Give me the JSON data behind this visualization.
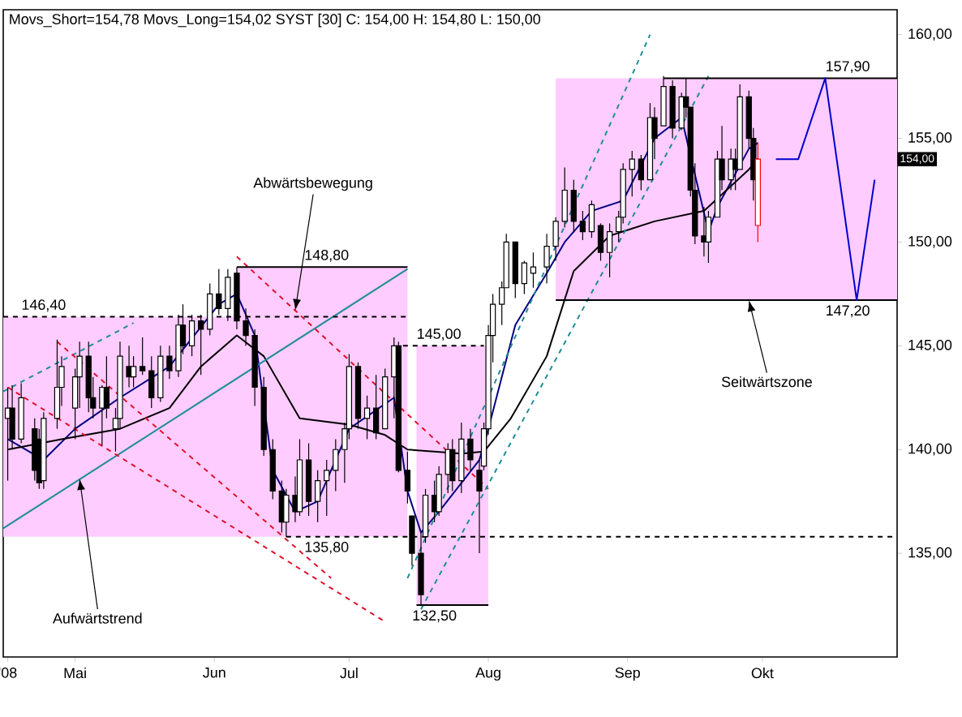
{
  "chart_data": {
    "type": "candlestick",
    "title": "Movs_Short=154,78 Movs_Long=154,02 SYST [30] C: 154,00 H: 154,80 L: 150,00",
    "xlim": [
      "2008-04-15",
      "2008-10-31"
    ],
    "ylim": [
      130,
      161.2
    ],
    "xticks": [
      {
        "value": "2008-04-16",
        "label": "'08"
      },
      {
        "value": "2008-05-01",
        "label": "Mai"
      },
      {
        "value": "2008-06-01",
        "label": "Jun"
      },
      {
        "value": "2008-07-01",
        "label": "Jul"
      },
      {
        "value": "2008-08-01",
        "label": "Aug"
      },
      {
        "value": "2008-09-01",
        "label": "Sep"
      },
      {
        "value": "2008-10-01",
        "label": "Okt"
      }
    ],
    "yticks": [
      {
        "value": 135,
        "label": "135,00"
      },
      {
        "value": 140,
        "label": "140,00"
      },
      {
        "value": 145,
        "label": "145,00"
      },
      {
        "value": 150,
        "label": "150,00"
      },
      {
        "value": 155,
        "label": "155,00"
      },
      {
        "value": 160,
        "label": "160,00"
      }
    ],
    "x": [
      "2008-04-16",
      "2008-04-17",
      "2008-04-19",
      "2008-04-22",
      "2008-04-23",
      "2008-04-24",
      "2008-04-27",
      "2008-04-28",
      "2008-05-01",
      "2008-05-02",
      "2008-05-04",
      "2008-05-05",
      "2008-05-07",
      "2008-05-08",
      "2008-05-10",
      "2008-05-11",
      "2008-05-13",
      "2008-05-14",
      "2008-05-16",
      "2008-05-18",
      "2008-05-20",
      "2008-05-22",
      "2008-05-24",
      "2008-05-25",
      "2008-05-27",
      "2008-05-29",
      "2008-05-31",
      "2008-06-02",
      "2008-06-04",
      "2008-06-06",
      "2008-06-08",
      "2008-06-10",
      "2008-06-12",
      "2008-06-14",
      "2008-06-16",
      "2008-06-17",
      "2008-06-19",
      "2008-06-20",
      "2008-06-22",
      "2008-06-24",
      "2008-06-26",
      "2008-06-28",
      "2008-06-30",
      "2008-07-01",
      "2008-07-03",
      "2008-07-05",
      "2008-07-07",
      "2008-07-09",
      "2008-07-11",
      "2008-07-12",
      "2008-07-14",
      "2008-07-15",
      "2008-07-17",
      "2008-07-18",
      "2008-07-20",
      "2008-07-21",
      "2008-07-23",
      "2008-07-24",
      "2008-07-26",
      "2008-07-28",
      "2008-07-30",
      "2008-07-31",
      "2008-08-01",
      "2008-08-02",
      "2008-08-04",
      "2008-08-05",
      "2008-08-07",
      "2008-08-09",
      "2008-08-11",
      "2008-08-14",
      "2008-08-16",
      "2008-08-18",
      "2008-08-20",
      "2008-08-22",
      "2008-08-24",
      "2008-08-26",
      "2008-08-28",
      "2008-08-30",
      "2008-08-31",
      "2008-09-02",
      "2008-09-04",
      "2008-09-06",
      "2008-09-07",
      "2008-09-09",
      "2008-09-11",
      "2008-09-13",
      "2008-09-14",
      "2008-09-15",
      "2008-09-16",
      "2008-09-18",
      "2008-09-19",
      "2008-09-21",
      "2008-09-22",
      "2008-09-24",
      "2008-09-25",
      "2008-09-26",
      "2008-09-28",
      "2008-09-29",
      "2008-09-30"
    ],
    "ohlc": [
      [
        141.5,
        143.0,
        138.5,
        142.0
      ],
      [
        142.0,
        143.1,
        140.0,
        140.5
      ],
      [
        140.5,
        143.2,
        140.3,
        142.5
      ],
      [
        141.0,
        141.5,
        138.5,
        139.0
      ],
      [
        140.5,
        141.0,
        138.1,
        138.4
      ],
      [
        138.5,
        141.8,
        138.1,
        141.5
      ],
      [
        141.5,
        145.3,
        141.0,
        143.0
      ],
      [
        143.0,
        144.5,
        142.1,
        144.0
      ],
      [
        142.0,
        143.9,
        140.5,
        143.5
      ],
      [
        143.5,
        145.2,
        142.0,
        144.5
      ],
      [
        144.5,
        145.2,
        141.8,
        142.5
      ],
      [
        142.5,
        143.5,
        141.5,
        142.0
      ],
      [
        142.0,
        143.1,
        140.2,
        143.0
      ],
      [
        143.0,
        144.5,
        141.5,
        142.0
      ],
      [
        141.0,
        142.0,
        139.9,
        141.5
      ],
      [
        141.5,
        145.2,
        141.0,
        144.5
      ],
      [
        144.0,
        145.0,
        143.0,
        143.5
      ],
      [
        143.5,
        144.5,
        143.0,
        144.0
      ],
      [
        144.0,
        145.4,
        143.6,
        143.8
      ],
      [
        143.8,
        144.5,
        142.0,
        142.5
      ],
      [
        142.5,
        145.0,
        142.3,
        144.5
      ],
      [
        144.5,
        145.0,
        143.4,
        143.8
      ],
      [
        143.8,
        146.5,
        143.5,
        146.0
      ],
      [
        146.0,
        147.0,
        144.6,
        145.0
      ],
      [
        145.0,
        146.5,
        144.5,
        146.2
      ],
      [
        146.2,
        146.5,
        143.6,
        145.8
      ],
      [
        145.8,
        148.0,
        145.5,
        147.5
      ],
      [
        147.5,
        148.7,
        146.5,
        146.8
      ],
      [
        146.8,
        148.7,
        146.2,
        148.3
      ],
      [
        148.5,
        148.8,
        145.8,
        146.2
      ],
      [
        146.2,
        146.8,
        145.0,
        145.5
      ],
      [
        145.5,
        145.8,
        142.1,
        143.0
      ],
      [
        143.0,
        143.5,
        139.7,
        140.0
      ],
      [
        140.0,
        140.5,
        137.6,
        138.0
      ],
      [
        138.0,
        138.5,
        136.0,
        136.5
      ],
      [
        136.5,
        138.1,
        135.8,
        137.8
      ],
      [
        137.8,
        138.7,
        136.5,
        137.0
      ],
      [
        137.0,
        140.5,
        136.8,
        139.5
      ],
      [
        139.5,
        140.3,
        136.8,
        137.5
      ],
      [
        137.5,
        139.0,
        136.5,
        138.5
      ],
      [
        138.5,
        139.5,
        136.8,
        139.0
      ],
      [
        139.0,
        140.5,
        138.0,
        140.0
      ],
      [
        140.0,
        141.3,
        138.4,
        141.0
      ],
      [
        141.0,
        144.6,
        140.5,
        144.0
      ],
      [
        144.0,
        144.2,
        141.0,
        141.5
      ],
      [
        141.5,
        142.6,
        140.5,
        142.0
      ],
      [
        142.0,
        143.6,
        140.5,
        140.8
      ],
      [
        141.0,
        143.9,
        141.0,
        143.5
      ],
      [
        143.5,
        145.4,
        141.5,
        145.0
      ],
      [
        145.0,
        145.2,
        138.9,
        139.0
      ],
      [
        139.0,
        139.9,
        137.4,
        138.0
      ],
      [
        136.8,
        136.8,
        134.4,
        135.0
      ],
      [
        135.0,
        136.0,
        132.5,
        133.0
      ],
      [
        135.8,
        138.1,
        135.5,
        137.8
      ],
      [
        137.8,
        138.5,
        136.5,
        137.0
      ],
      [
        137.0,
        139.2,
        136.8,
        138.8
      ],
      [
        138.8,
        140.3,
        137.9,
        140.0
      ],
      [
        140.0,
        140.5,
        138.0,
        138.5
      ],
      [
        138.5,
        141.3,
        137.9,
        140.5
      ],
      [
        140.5,
        141.0,
        139.0,
        139.5
      ],
      [
        139.0,
        139.5,
        135.0,
        138.0
      ],
      [
        139.2,
        141.3,
        139.0,
        141.0
      ],
      [
        141.0,
        146.0,
        140.7,
        145.5
      ],
      [
        145.5,
        147.5,
        144.2,
        147.0
      ],
      [
        147.0,
        148.1,
        146.0,
        147.8
      ],
      [
        147.8,
        150.4,
        147.8,
        150.0
      ],
      [
        150.0,
        150.0,
        147.3,
        148.0
      ],
      [
        148.0,
        149.1,
        147.5,
        149.0
      ],
      [
        148.5,
        149.5,
        147.8,
        148.8
      ],
      [
        148.8,
        150.4,
        148.0,
        149.8
      ],
      [
        149.8,
        151.2,
        149.1,
        151.0
      ],
      [
        151.0,
        153.6,
        150.7,
        152.5
      ],
      [
        152.5,
        153.0,
        150.5,
        151.0
      ],
      [
        151.0,
        151.5,
        150.1,
        150.5
      ],
      [
        150.5,
        152.0,
        150.2,
        151.8
      ],
      [
        150.8,
        150.9,
        149.1,
        149.5
      ],
      [
        149.5,
        150.9,
        148.3,
        150.5
      ],
      [
        150.5,
        151.5,
        150.0,
        151.2
      ],
      [
        151.2,
        153.8,
        150.9,
        153.5
      ],
      [
        153.5,
        154.4,
        152.2,
        154.0
      ],
      [
        154.0,
        154.2,
        152.5,
        153.0
      ],
      [
        153.0,
        156.7,
        153.0,
        156.0
      ],
      [
        156.0,
        156.5,
        154.0,
        155.0
      ],
      [
        155.6,
        158.0,
        155.6,
        157.5
      ],
      [
        157.5,
        157.8,
        155.0,
        155.5
      ],
      [
        155.5,
        157.2,
        155.4,
        157.0
      ],
      [
        157.0,
        157.9,
        156.0,
        156.5
      ],
      [
        156.5,
        156.5,
        152.2,
        152.5
      ],
      [
        152.5,
        153.8,
        149.9,
        150.3
      ],
      [
        150.3,
        151.7,
        149.3,
        150.0
      ],
      [
        150.0,
        151.5,
        149.0,
        151.2
      ],
      [
        151.2,
        154.4,
        151.2,
        154.0
      ],
      [
        154.0,
        155.6,
        152.5,
        153.0
      ],
      [
        153.0,
        154.5,
        152.5,
        154.0
      ],
      [
        154.0,
        154.5,
        152.5,
        153.5
      ],
      [
        153.5,
        157.6,
        153.5,
        157.0
      ],
      [
        157.0,
        157.3,
        154.5,
        155.0
      ],
      [
        155.0,
        155.5,
        152.0,
        153.0
      ],
      [
        150.8,
        154.8,
        150.0,
        154.0
      ]
    ],
    "colors": [
      "#000000",
      "#000000",
      "#000000",
      "#000000",
      "#000000",
      "#000000",
      "#000000",
      "#000000",
      "#000000",
      "#000000",
      "#000000",
      "#000000",
      "#000000",
      "#000000",
      "#000000",
      "#000000",
      "#000000",
      "#000000",
      "#000000",
      "#000000",
      "#000000",
      "#000000",
      "#000000",
      "#000000",
      "#000000",
      "#000000",
      "#000000",
      "#000000",
      "#000000",
      "#000000",
      "#000000",
      "#000000",
      "#000000",
      "#000000",
      "#000000",
      "#000000",
      "#000000",
      "#000000",
      "#000000",
      "#000000",
      "#000000",
      "#000000",
      "#000000",
      "#000000",
      "#000000",
      "#000000",
      "#000000",
      "#000000",
      "#000000",
      "#000000",
      "#000000",
      "#000000",
      "#000000",
      "#000000",
      "#000000",
      "#000000",
      "#000000",
      "#000000",
      "#000000",
      "#000000",
      "#000000",
      "#000000",
      "#000000",
      "#000000",
      "#000000",
      "#000000",
      "#000000",
      "#000000",
      "#000000",
      "#000000",
      "#000000",
      "#000000",
      "#000000",
      "#000000",
      "#000000",
      "#000000",
      "#000000",
      "#000000",
      "#000000",
      "#000000",
      "#000000",
      "#000000",
      "#000000",
      "#000000",
      "#000000",
      "#000000",
      "#000000",
      "#000000",
      "#000000",
      "#000000",
      "#000000",
      "#000000",
      "#000000",
      "#000000",
      "#000000",
      "#000000",
      "#000000",
      "#000000",
      "#ff0000"
    ],
    "value_labels": [
      null,
      null,
      null,
      null,
      null,
      null,
      null,
      null,
      null,
      null,
      null,
      null,
      null,
      null,
      null,
      null,
      null,
      null,
      null,
      null,
      null,
      null,
      null,
      null,
      null,
      null,
      null,
      null,
      null,
      null,
      null,
      null,
      null,
      null,
      null,
      null,
      null,
      null,
      null,
      null,
      null,
      null,
      null,
      null,
      null,
      null,
      null,
      null,
      null,
      null,
      null,
      null,
      null,
      null,
      null,
      null,
      null,
      null,
      null,
      null,
      null,
      null,
      null,
      null,
      null,
      null,
      null,
      null,
      null,
      null,
      null,
      null,
      null,
      null,
      null,
      null,
      null,
      null,
      null,
      null,
      null,
      null,
      null,
      null,
      null,
      null,
      null,
      null,
      null,
      null,
      null,
      null,
      null,
      null,
      null,
      null,
      null,
      null,
      "154,00"
    ],
    "series": [
      {
        "type": "line",
        "color": "#000080",
        "x": [
          "2008-04-16",
          "2008-04-24",
          "2008-05-01",
          "2008-05-11",
          "2008-05-22",
          "2008-06-02",
          "2008-06-06",
          "2008-06-10",
          "2008-06-14",
          "2008-06-19",
          "2008-06-24",
          "2008-07-01",
          "2008-07-11",
          "2008-07-14",
          "2008-07-17",
          "2008-07-21",
          "2008-07-30",
          "2008-08-01",
          "2008-08-07",
          "2008-08-14",
          "2008-08-18",
          "2008-08-24",
          "2008-08-31",
          "2008-09-07",
          "2008-09-13",
          "2008-09-15",
          "2008-09-19",
          "2008-09-21",
          "2008-09-28",
          "2008-09-30"
        ],
        "values": [
          140.5,
          139.5,
          141,
          142.5,
          144,
          147,
          147.5,
          145.5,
          139,
          137,
          137.5,
          141,
          142.5,
          138,
          136,
          137,
          139.5,
          141,
          146,
          148.5,
          150,
          151.5,
          152,
          155,
          156,
          null,
          150.5,
          151.7,
          154.5,
          154.78
        ]
      },
      {
        "type": "line",
        "color": "#000000",
        "x": [
          "2008-04-16",
          "2008-04-28",
          "2008-05-11",
          "2008-05-22",
          "2008-05-29",
          "2008-06-06",
          "2008-06-12",
          "2008-06-20",
          "2008-07-01",
          "2008-07-09",
          "2008-07-14",
          "2008-07-26",
          "2008-07-31",
          "2008-08-06",
          "2008-08-14",
          "2008-08-20",
          "2008-08-28",
          "2008-09-07",
          "2008-09-18",
          "2008-09-28",
          "2008-09-30"
        ],
        "values": [
          140,
          140.5,
          141,
          142,
          144,
          145.5,
          144.5,
          141.5,
          141.2,
          140.7,
          140,
          139.8,
          139.9,
          141.5,
          144.5,
          148.6,
          150.3,
          151,
          151.5,
          153.5,
          154.02
        ]
      },
      {
        "type": "line",
        "color": "#1e8c96",
        "line_style": "solid",
        "x": [
          "2008-04-15",
          "2008-07-14"
        ],
        "values": [
          136.2,
          148.7
        ]
      },
      {
        "type": "line",
        "color": "#1e8c96",
        "line_style": "dashed",
        "x": [
          "2008-04-15",
          "2008-05-14"
        ],
        "values": [
          142.8,
          146.1
        ]
      },
      {
        "type": "line",
        "color": "#e0102a",
        "line_style": "dashed",
        "x": [
          "2008-04-27",
          "2008-06-27"
        ],
        "values": [
          145.2,
          133.8
        ]
      },
      {
        "type": "line",
        "color": "#e0102a",
        "line_style": "dashed",
        "x": [
          "2008-06-06",
          "2008-08-01"
        ],
        "values": [
          149.3,
          138.1
        ]
      },
      {
        "type": "line",
        "color": "#e0102a",
        "line_style": "dashed",
        "x": [
          "2008-04-16",
          "2008-07-09"
        ],
        "values": [
          143.0,
          131.7
        ]
      },
      {
        "type": "line",
        "color": "#1e8c96",
        "line_style": "dashed",
        "x": [
          "2008-07-14",
          "2008-09-06"
        ],
        "values": [
          133.8,
          160.0
        ]
      },
      {
        "type": "line",
        "color": "#1e8c96",
        "line_style": "dashed",
        "x": [
          "2008-07-17",
          "2008-09-19"
        ],
        "values": [
          132.3,
          158.0
        ]
      },
      {
        "type": "line",
        "color": "#000000",
        "line_style": "dashed",
        "x": [
          "2008-04-15",
          "2008-04-24",
          "2008-06-06",
          "2008-07-14"
        ],
        "values": [
          146.4,
          146.4,
          146.4,
          146.4
        ],
        "lower": [
          135.8,
          135.8,
          135.8,
          null
        ],
        "upper": [
          146.4,
          146.4,
          146.4,
          null
        ],
        "value_labels": [
          null,
          "146,40",
          null,
          null
        ]
      },
      {
        "type": "line",
        "color": "#000000",
        "line_style": "solid",
        "x": [
          "2008-06-06",
          "2008-06-26",
          "2008-07-14"
        ],
        "values": [
          148.8,
          148.8,
          148.8
        ],
        "lower": [
          135.8,
          135.8,
          135.8
        ],
        "upper": [
          148.8,
          148.8,
          148.8
        ],
        "value_labels": [
          null,
          "148,80",
          null
        ]
      },
      {
        "type": "line",
        "color": "#000000",
        "line_style": "dashed",
        "x": [
          "2008-07-13",
          "2008-07-16",
          "2008-07-21",
          "2008-07-31",
          "2008-08-01"
        ],
        "values": [
          145.0,
          145.0,
          145.0,
          145.0,
          null
        ],
        "lower": [
          null,
          132.5,
          132.5,
          132.5,
          132.5
        ],
        "upper": [
          null,
          145.0,
          145.0,
          145.0,
          145.0
        ],
        "value_labels": [
          null,
          null,
          "145,00",
          null,
          null
        ]
      },
      {
        "type": "line",
        "color": "#000000",
        "line_style": "dashed",
        "x": [
          "2008-06-17",
          "2008-06-26",
          "2008-10-31"
        ],
        "values": [
          135.8,
          135.8,
          135.8
        ],
        "value_labels": [
          null,
          "135,80",
          null
        ]
      },
      {
        "type": "line",
        "color": "#000000",
        "line_style": "solid",
        "x": [
          "2008-07-16",
          "2008-07-20",
          "2008-08-01"
        ],
        "values": [
          132.5,
          132.5,
          132.5
        ],
        "value_labels": [
          null,
          "132,50",
          null
        ]
      },
      {
        "type": "line",
        "color": "#000000",
        "line_style": "solid",
        "x": [
          "2008-08-16",
          "2008-09-09",
          "2008-10-20",
          "2008-10-31"
        ],
        "values": [
          null,
          157.9,
          157.9,
          157.9
        ],
        "lower": [
          147.2,
          147.2,
          147.2,
          147.2
        ],
        "upper": [
          157.9,
          157.9,
          157.9,
          157.9
        ],
        "value_labels": [
          null,
          null,
          "157,90",
          null
        ]
      },
      {
        "type": "line",
        "color": "#000000",
        "line_style": "solid",
        "x": [
          "2008-08-16",
          "2008-10-20",
          "2008-10-31"
        ],
        "values": [
          147.2,
          147.2,
          147.2
        ],
        "value_labels": [
          null,
          "147,20",
          null
        ]
      },
      {
        "type": "line",
        "color": "#0000cc",
        "line_style": "solid",
        "x": [
          "2008-10-04",
          "2008-10-09",
          "2008-10-15",
          "2008-10-22",
          "2008-10-26"
        ],
        "values": [
          154,
          154,
          157.9,
          147.2,
          153
        ]
      }
    ],
    "annotations": [
      {
        "text": "Abwärtsbewegung",
        "x": "2008-06-19",
        "y": 146.7
      },
      {
        "text": "Aufwärtstrend",
        "x": "2008-05-02",
        "y": 138.6
      },
      {
        "text": "Seitwärtszone",
        "x": "2008-09-28",
        "y": 147.2
      }
    ]
  }
}
